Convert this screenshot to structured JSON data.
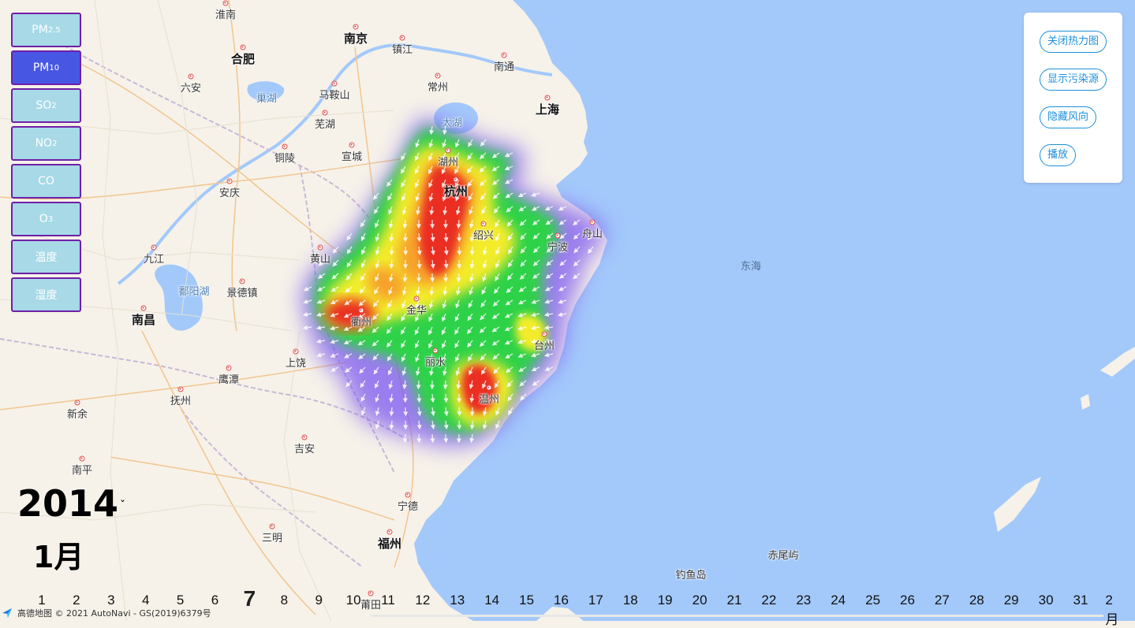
{
  "map": {
    "attribution": "高德地图 © 2021 AutoNavi - GS(2019)6379号",
    "labels": [
      {
        "name": "淮南",
        "type": "city"
      },
      {
        "name": "南京",
        "type": "major"
      },
      {
        "name": "合肥",
        "type": "major"
      },
      {
        "name": "镇江",
        "type": "city"
      },
      {
        "name": "南通",
        "type": "city"
      },
      {
        "name": "六安",
        "type": "city"
      },
      {
        "name": "巢湖",
        "type": "water"
      },
      {
        "name": "马鞍山",
        "type": "city"
      },
      {
        "name": "常州",
        "type": "city"
      },
      {
        "name": "上海",
        "type": "major"
      },
      {
        "name": "芜湖",
        "type": "city"
      },
      {
        "name": "太湖",
        "type": "water"
      },
      {
        "name": "铜陵",
        "type": "city"
      },
      {
        "name": "宣城",
        "type": "city"
      },
      {
        "name": "湖州",
        "type": "city"
      },
      {
        "name": "安庆",
        "type": "city"
      },
      {
        "name": "杭州",
        "type": "major"
      },
      {
        "name": "绍兴",
        "type": "city"
      },
      {
        "name": "舟山",
        "type": "city"
      },
      {
        "name": "宁波",
        "type": "city"
      },
      {
        "name": "九江",
        "type": "city"
      },
      {
        "name": "黄山",
        "type": "city"
      },
      {
        "name": "东海",
        "type": "sea"
      },
      {
        "name": "鄱阳湖",
        "type": "water"
      },
      {
        "name": "景德镇",
        "type": "city"
      },
      {
        "name": "金华",
        "type": "city"
      },
      {
        "name": "衢州",
        "type": "city"
      },
      {
        "name": "南昌",
        "type": "major"
      },
      {
        "name": "台州",
        "type": "city"
      },
      {
        "name": "丽水",
        "type": "city"
      },
      {
        "name": "上饶",
        "type": "city"
      },
      {
        "name": "鹰潭",
        "type": "city"
      },
      {
        "name": "温州",
        "type": "city"
      },
      {
        "name": "抚州",
        "type": "city"
      },
      {
        "name": "新余",
        "type": "city"
      },
      {
        "name": "南平",
        "type": "city"
      },
      {
        "name": "吉安",
        "type": "city"
      },
      {
        "name": "宁德",
        "type": "city"
      },
      {
        "name": "三明",
        "type": "city"
      },
      {
        "name": "福州",
        "type": "major"
      },
      {
        "name": "赤尾屿",
        "type": "island"
      },
      {
        "name": "钓鱼岛",
        "type": "island"
      },
      {
        "name": "莆田",
        "type": "city"
      }
    ]
  },
  "pollutants": [
    {
      "label": "PM",
      "sub": "2.5",
      "active": false
    },
    {
      "label": "PM",
      "sub": "10",
      "active": true
    },
    {
      "label": "SO",
      "sub": "2",
      "active": false
    },
    {
      "label": "NO",
      "sub": "2",
      "active": false
    },
    {
      "label": "CO",
      "sub": "",
      "active": false
    },
    {
      "label": "O",
      "sub": "3",
      "active": false
    },
    {
      "label": "温度",
      "sub": "",
      "active": false
    },
    {
      "label": "湿度",
      "sub": "",
      "active": false
    }
  ],
  "controls": {
    "toggle_heatmap": "关闭热力图",
    "show_sources": "显示污染源",
    "toggle_wind": "隐藏风向",
    "play": "播放"
  },
  "time": {
    "year": "2014",
    "month": "1月",
    "days": [
      "1",
      "2",
      "3",
      "4",
      "5",
      "6",
      "7",
      "8",
      "9",
      "10",
      "11",
      "12",
      "13",
      "14",
      "15",
      "16",
      "17",
      "18",
      "19",
      "20",
      "21",
      "22",
      "23",
      "24",
      "25",
      "26",
      "27",
      "28",
      "29",
      "30",
      "31",
      "2月"
    ],
    "current_day": "7"
  },
  "colors": {
    "land": "#f6f2e9",
    "sea": "#a3c9fb",
    "active_button": "#4757e4",
    "inactive_button": "#a7d9e6",
    "button_border": "#6f1fa9",
    "control_accent": "#1d8fdc"
  }
}
